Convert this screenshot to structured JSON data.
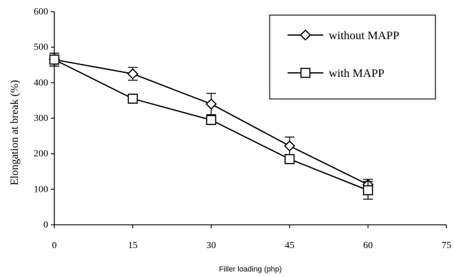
{
  "chart_data": {
    "type": "line",
    "title": "",
    "xlabel": "Filler loading (php)",
    "ylabel": "Elongation at break (%)",
    "xlim": [
      0,
      75
    ],
    "ylim": [
      0,
      600
    ],
    "x_ticks": [
      0,
      15,
      30,
      45,
      60,
      75
    ],
    "y_ticks": [
      0,
      100,
      200,
      300,
      400,
      500,
      600
    ],
    "x_tick_labels": [
      "0",
      "15",
      "30",
      "45",
      "60",
      "75"
    ],
    "y_tick_labels": [
      "0",
      "100",
      "200",
      "300",
      "400",
      "500",
      "600"
    ],
    "grid": false,
    "legend_position": "top-right",
    "series": [
      {
        "name": "without MAPP",
        "marker": "diamond",
        "x": [
          0,
          15,
          30,
          45,
          60
        ],
        "y": [
          465,
          425,
          340,
          222,
          113
        ],
        "error": [
          18,
          18,
          30,
          25,
          15
        ]
      },
      {
        "name": "with MAPP",
        "marker": "square",
        "x": [
          0,
          15,
          30,
          45,
          60
        ],
        "y": [
          465,
          355,
          295,
          185,
          97
        ],
        "error": [
          18,
          0,
          0,
          0,
          25
        ]
      }
    ]
  }
}
